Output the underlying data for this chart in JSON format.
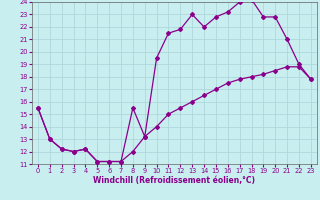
{
  "xlabel": "Windchill (Refroidissement éolien,°C)",
  "xlim": [
    -0.5,
    23.5
  ],
  "ylim": [
    11,
    24
  ],
  "xticks": [
    0,
    1,
    2,
    3,
    4,
    5,
    6,
    7,
    8,
    9,
    10,
    11,
    12,
    13,
    14,
    15,
    16,
    17,
    18,
    19,
    20,
    21,
    22,
    23
  ],
  "yticks": [
    11,
    12,
    13,
    14,
    15,
    16,
    17,
    18,
    19,
    20,
    21,
    22,
    23,
    24
  ],
  "bg_color": "#c8eef0",
  "line_color": "#8b008b",
  "grid_color": "#aad4d8",
  "line1_x": [
    0,
    1,
    2,
    3,
    4,
    5,
    6,
    7,
    8,
    9,
    10,
    11,
    12,
    13,
    14,
    15,
    16,
    17,
    18,
    19,
    20,
    21,
    22,
    23
  ],
  "line1_y": [
    15.5,
    13.0,
    12.2,
    12.0,
    12.2,
    11.2,
    11.2,
    11.2,
    15.5,
    13.2,
    19.5,
    21.5,
    21.8,
    23.0,
    22.0,
    22.8,
    23.2,
    24.0,
    24.2,
    22.8,
    22.8,
    21.0,
    19.0,
    17.8
  ],
  "line2_x": [
    0,
    1,
    2,
    3,
    4,
    5,
    6,
    7,
    8,
    9,
    10,
    11,
    12,
    13,
    14,
    15,
    16,
    17,
    18,
    19,
    20,
    21,
    22,
    23
  ],
  "line2_y": [
    15.5,
    13.0,
    12.2,
    12.0,
    12.2,
    11.2,
    11.2,
    11.2,
    12.0,
    13.2,
    14.0,
    15.0,
    15.5,
    16.0,
    16.5,
    17.0,
    17.5,
    17.8,
    18.0,
    18.2,
    18.5,
    18.8,
    18.8,
    17.8
  ],
  "marker": "D",
  "marker_size": 2,
  "line_width": 0.9,
  "axis_fontsize": 5.5,
  "tick_fontsize": 4.8
}
